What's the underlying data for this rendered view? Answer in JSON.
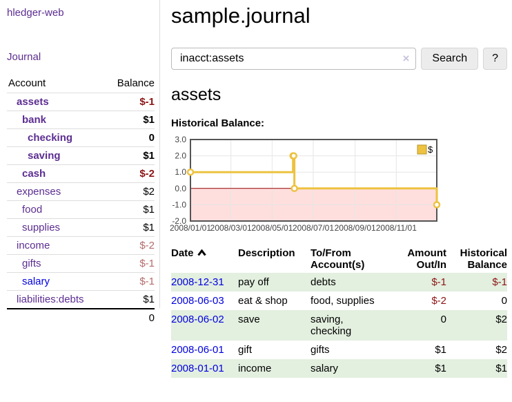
{
  "colors": {
    "link_purple": "#5c2d91",
    "link_blue": "#0000e0",
    "negative_strong": "#8b1414",
    "negative_muted": "#b46b6b",
    "stripe_green": "#e3efdf",
    "chart_gold": "#EDC240",
    "chart_negative_bg": "#ffdede",
    "chart_zero_line": "#990000",
    "chart_border": "#545454"
  },
  "sidebar": {
    "brand": "hledger-web",
    "nav_journal": "Journal",
    "accounts": {
      "headers": {
        "account": "Account",
        "balance": "Balance"
      },
      "rows": [
        {
          "name": "assets",
          "indent": 0,
          "bold": true,
          "balance": "$-1",
          "neg": "strong"
        },
        {
          "name": "bank",
          "indent": 1,
          "bold": true,
          "balance": "$1"
        },
        {
          "name": "checking",
          "indent": 2,
          "bold": true,
          "balance": "0"
        },
        {
          "name": "saving",
          "indent": 2,
          "bold": true,
          "balance": "$1"
        },
        {
          "name": "cash",
          "indent": 1,
          "bold": true,
          "balance": "$-2",
          "neg": "strong"
        },
        {
          "name": "expenses",
          "indent": 0,
          "bold": false,
          "balance": "$2"
        },
        {
          "name": "food",
          "indent": 1,
          "bold": false,
          "balance": "$1"
        },
        {
          "name": "supplies",
          "indent": 1,
          "bold": false,
          "balance": "$1"
        },
        {
          "name": "income",
          "indent": 0,
          "bold": false,
          "balance": "$-2",
          "neg": "muted"
        },
        {
          "name": "gifts",
          "indent": 1,
          "bold": false,
          "balance": "$-1",
          "neg": "muted"
        },
        {
          "name": "salary",
          "indent": 1,
          "bold": false,
          "balance": "$-1",
          "neg": "muted",
          "blue": true
        },
        {
          "name": "liabilities:debts",
          "indent": 0,
          "bold": false,
          "balance": "$1"
        }
      ],
      "total": "0"
    }
  },
  "main": {
    "title": "sample.journal",
    "search": {
      "value": "inacct:assets",
      "clear_icon": "×",
      "search_label": "Search",
      "help_label": "?"
    },
    "account_heading": "assets",
    "chart_label": "Historical Balance:",
    "register": {
      "headers": {
        "date": "Date",
        "description": "Description",
        "accounts": "To/From Account(s)",
        "amount": "Amount Out/In",
        "balance": "Historical Balance"
      },
      "rows": [
        {
          "date": "2008-12-31",
          "description": "pay off",
          "accounts": "debts",
          "amount": "$-1",
          "amount_neg": true,
          "balance": "$-1",
          "balance_neg": true
        },
        {
          "date": "2008-06-03",
          "description": "eat & shop",
          "accounts": "food, supplies",
          "amount": "$-2",
          "amount_neg": true,
          "balance": "0",
          "balance_neg": false
        },
        {
          "date": "2008-06-02",
          "description": "save",
          "accounts": "saving, checking",
          "amount": "0",
          "amount_neg": false,
          "balance": "$2",
          "balance_neg": false
        },
        {
          "date": "2008-06-01",
          "description": "gift",
          "accounts": "gifts",
          "amount": "$1",
          "amount_neg": false,
          "balance": "$2",
          "balance_neg": false
        },
        {
          "date": "2008-01-01",
          "description": "income",
          "accounts": "salary",
          "amount": "$1",
          "amount_neg": false,
          "balance": "$1",
          "balance_neg": false
        }
      ]
    }
  },
  "chart_data": {
    "type": "line",
    "step": true,
    "title": "Historical Balance",
    "series": [
      {
        "name": "$",
        "color": "#EDC240",
        "points": [
          [
            "2008-01-01",
            1
          ],
          [
            "2008-06-01",
            2
          ],
          [
            "2008-06-02",
            2
          ],
          [
            "2008-06-03",
            0
          ],
          [
            "2008-12-31",
            -1
          ]
        ]
      }
    ],
    "xrange": [
      "2008-01-01",
      "2008-12-31"
    ],
    "ylim": [
      -2,
      3
    ],
    "yticks": [
      3,
      2,
      1,
      0,
      -1,
      -2
    ],
    "ytick_labels": [
      "3.0",
      "2.0",
      "1.0",
      "0.0",
      "-1.0",
      "-2.0"
    ],
    "xticks": [
      "2008-01-01",
      "2008-03-01",
      "2008-05-01",
      "2008-07-01",
      "2008-09-01",
      "2008-11-01"
    ],
    "xtick_labels": [
      "2008/01/01",
      "2008/03/01",
      "2008/05/01",
      "2008/07/01",
      "2008/09/01",
      "2008/11/01"
    ],
    "legend": {
      "position": "top-right",
      "label": "$"
    },
    "grid": true,
    "negative_region_color": "#ffdede",
    "zero_line_color": "#990000"
  }
}
